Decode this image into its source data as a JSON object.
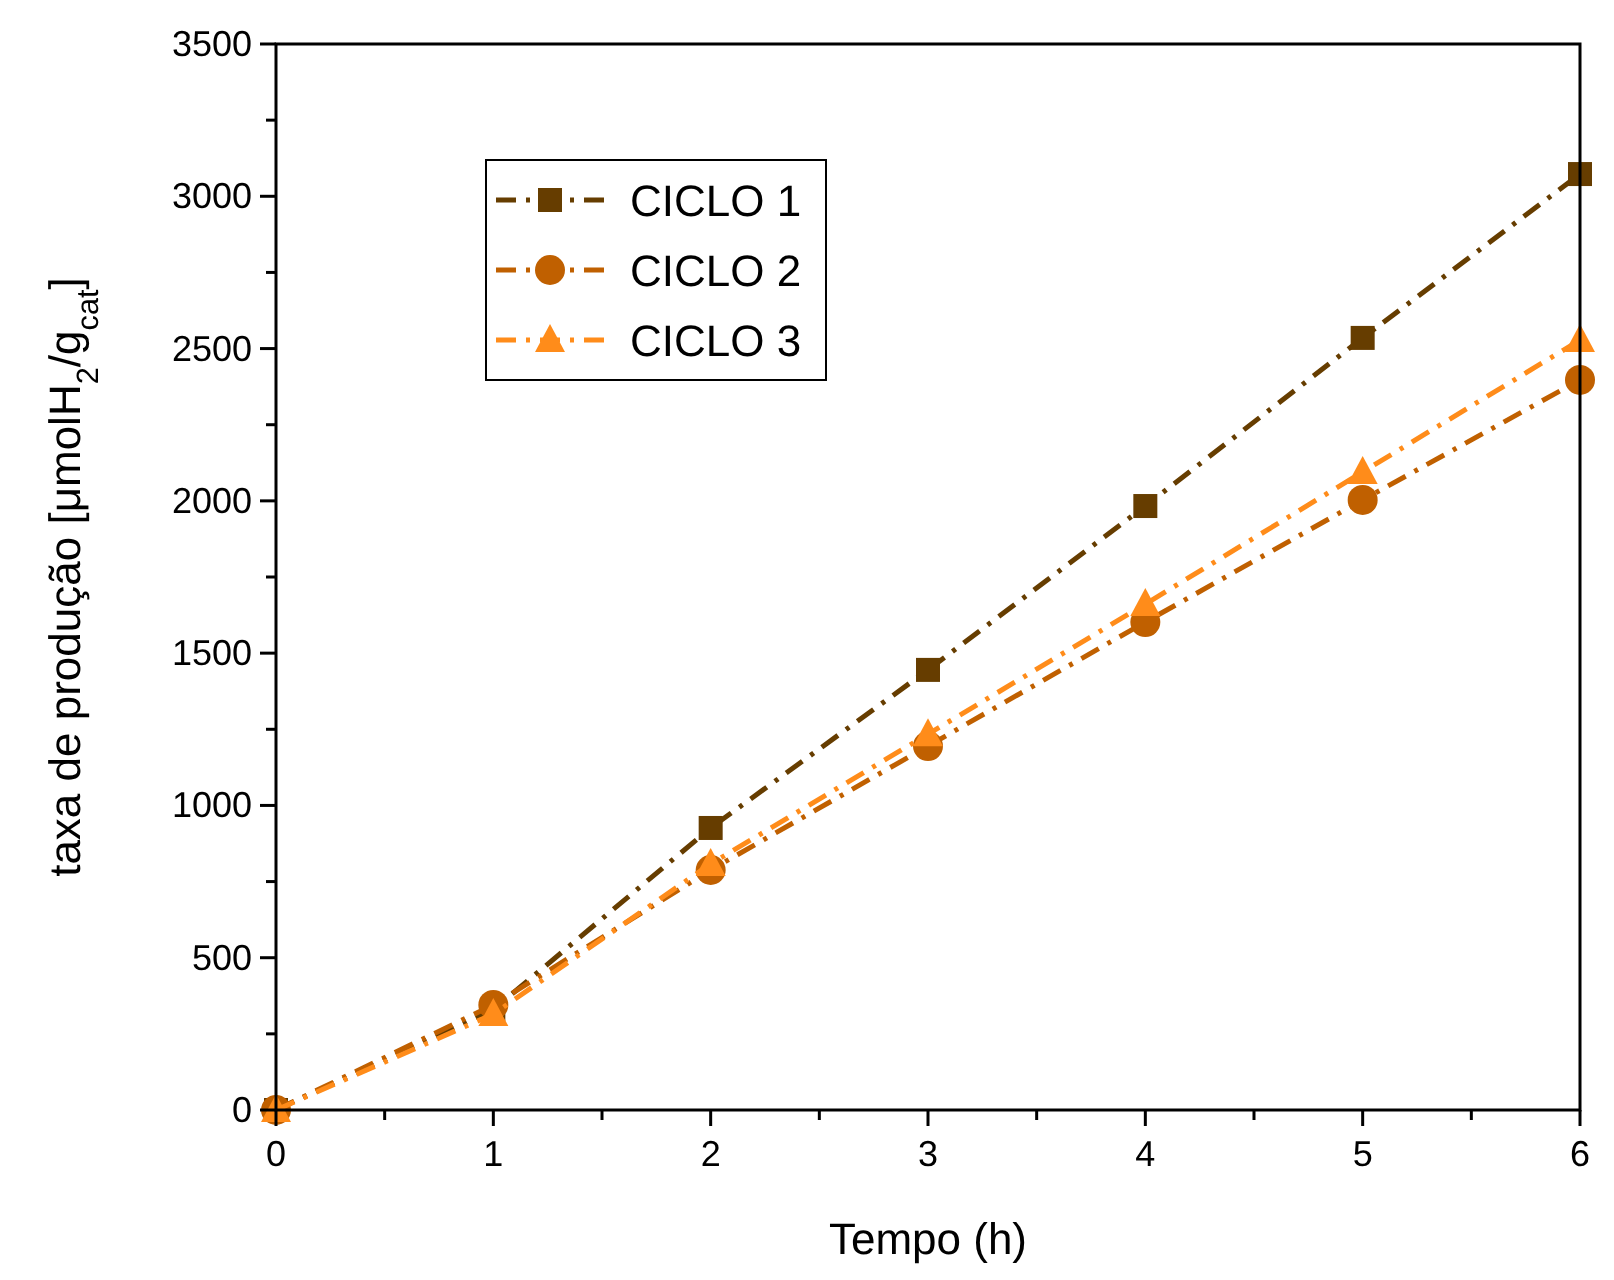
{
  "chart_data": {
    "type": "line",
    "xlabel": "Tempo (h)",
    "ylabel": "taxa de produção [μmolH$_{2}$/g$_{cat}$]",
    "x": [
      0,
      1,
      2,
      3,
      4,
      5,
      6
    ],
    "series": [
      {
        "name": "CICLO 1",
        "color": "#663d00",
        "marker": "square",
        "values": [
          0,
          330,
          926,
          1445,
          1983,
          2535,
          3073
        ]
      },
      {
        "name": "CICLO 2",
        "color": "#c06000",
        "marker": "circle",
        "values": [
          0,
          345,
          788,
          1195,
          1602,
          2003,
          2397
        ]
      },
      {
        "name": "CICLO 3",
        "color": "#ff8c1a",
        "marker": "triangle",
        "values": [
          0,
          315,
          808,
          1234,
          1661,
          2095,
          2528
        ]
      }
    ],
    "line_style": "dashdot",
    "xlim": [
      0,
      6
    ],
    "xticks": [
      0,
      {
        "value": 0.5,
        "label": null
      },
      1,
      {
        "value": 1.5,
        "label": null
      },
      2,
      {
        "value": 2.5,
        "label": null
      },
      3,
      {
        "value": 3.5,
        "label": null
      },
      4,
      {
        "value": 4.5,
        "label": null
      },
      5,
      {
        "value": 5.5,
        "label": null
      },
      6
    ],
    "ylim": [
      0,
      3500
    ],
    "yticks": [
      0,
      {
        "value": 250,
        "label": null
      },
      500,
      {
        "value": 750,
        "label": null
      },
      1000,
      {
        "value": 1250,
        "label": null
      },
      1500,
      {
        "value": 1750,
        "label": null
      },
      2000,
      {
        "value": 2250,
        "label": null
      },
      2500,
      {
        "value": 2750,
        "label": null
      },
      3000,
      {
        "value": 3250,
        "label": null
      },
      3500
    ],
    "grid": false,
    "legend": "top left"
  }
}
